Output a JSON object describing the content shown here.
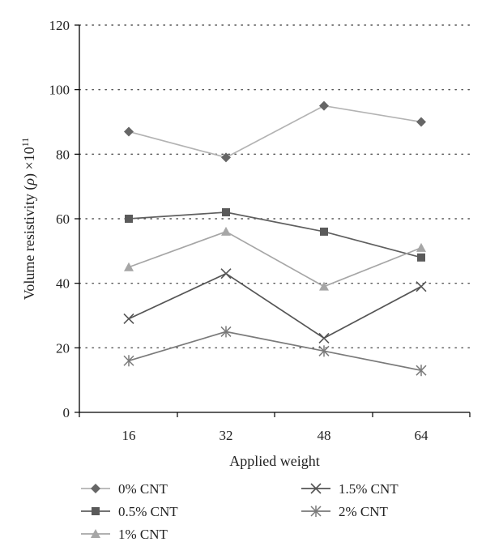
{
  "chart_data": {
    "type": "line",
    "xlabel": "Applied weight",
    "ylabel_main": "Volume resistivity (",
    "ylabel_rho": "ρ",
    "ylabel_close": ") ×10",
    "ylabel_exp": "11",
    "categories": [
      "16",
      "32",
      "48",
      "64"
    ],
    "ylim": [
      0,
      120
    ],
    "yticks": [
      0,
      20,
      40,
      60,
      80,
      100,
      120
    ],
    "grid": "horizontal dotted",
    "legend_position": "bottom",
    "series": [
      {
        "name": "0% CNT",
        "values": [
          87,
          79,
          95,
          90
        ],
        "line_color": "#b3b3b3",
        "marker": "diamond",
        "marker_color": "#666666"
      },
      {
        "name": "0.5% CNT",
        "values": [
          60,
          62,
          56,
          48
        ],
        "line_color": "#5f5f5f",
        "marker": "square",
        "marker_color": "#5a5a5a"
      },
      {
        "name": "1% CNT",
        "values": [
          45,
          56,
          39,
          51
        ],
        "line_color": "#a6a6a6",
        "marker": "triangle",
        "marker_color": "#a6a6a6"
      },
      {
        "name": "1.5% CNT",
        "values": [
          29,
          43,
          23,
          39
        ],
        "line_color": "#555555",
        "marker": "x",
        "marker_color": "#555555"
      },
      {
        "name": "2% CNT",
        "values": [
          16,
          25,
          19,
          13
        ],
        "line_color": "#7a7a7a",
        "marker": "asterisk",
        "marker_color": "#7a7a7a"
      }
    ]
  }
}
